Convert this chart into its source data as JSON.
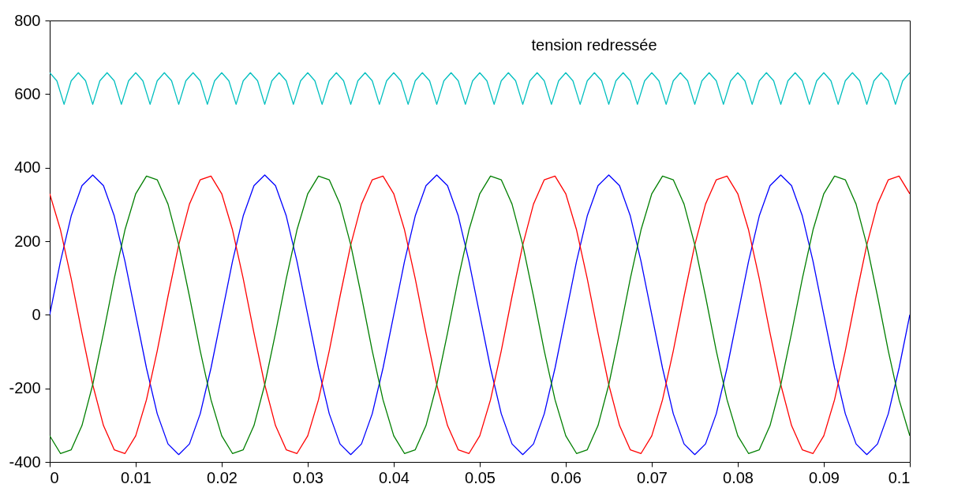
{
  "chart_data": {
    "type": "line",
    "xlim": [
      0,
      0.1
    ],
    "ylim": [
      -400,
      800
    ],
    "xticks": [
      0,
      0.01,
      0.02,
      0.03,
      0.04,
      0.05,
      0.06,
      0.07,
      0.08,
      0.09,
      0.1
    ],
    "yticks": [
      -400,
      -200,
      0,
      200,
      400,
      600,
      800
    ],
    "grid": false,
    "marker": "none",
    "line_style": "solid",
    "annotations": [
      "tension redressée"
    ],
    "x": [
      0,
      0.00125,
      0.0025,
      0.00375,
      0.005,
      0.00625,
      0.0075,
      0.00875,
      0.01,
      0.01125,
      0.0125,
      0.01375,
      0.015,
      0.01625,
      0.0175,
      0.01875,
      0.02,
      0.02125,
      0.0225,
      0.02375,
      0.025,
      0.02625,
      0.0275,
      0.02875,
      0.03,
      0.03125,
      0.0325,
      0.03375,
      0.035,
      0.03625,
      0.0375,
      0.03875,
      0.04,
      0.04125,
      0.0425,
      0.04375,
      0.045,
      0.04625,
      0.0475,
      0.04875,
      0.05,
      0.05125,
      0.0525,
      0.05375,
      0.055,
      0.05625,
      0.0575,
      0.05875,
      0.06,
      0.06125,
      0.0625,
      0.06375,
      0.065,
      0.06625,
      0.0675,
      0.06875,
      0.07,
      0.07125,
      0.0725,
      0.07375,
      0.075,
      0.07625,
      0.0775,
      0.07875,
      0.08,
      0.08125,
      0.0825,
      0.08375,
      0.085,
      0.08625,
      0.0875,
      0.08875,
      0.09,
      0.09125,
      0.0925,
      0.09375,
      0.095,
      0.09625,
      0.0975,
      0.09875,
      0.1
    ],
    "series": [
      {
        "color": "#0000ff",
        "values": [
          0,
          145,
          269,
          351,
          380,
          351,
          269,
          145,
          0,
          -145,
          -269,
          -351,
          -380,
          -351,
          -269,
          -145,
          0,
          145,
          269,
          351,
          380,
          351,
          269,
          145,
          0,
          -145,
          -269,
          -351,
          -380,
          -351,
          -269,
          -145,
          0,
          145,
          269,
          351,
          380,
          351,
          269,
          145,
          0,
          -145,
          -269,
          -351,
          -380,
          -351,
          -269,
          -145,
          0,
          145,
          269,
          351,
          380,
          351,
          269,
          145,
          0,
          -145,
          -269,
          -351,
          -380,
          -351,
          -269,
          -145,
          0,
          145,
          269,
          351,
          380,
          351,
          269,
          145,
          0,
          -145,
          -269,
          -351,
          -380,
          -351,
          -269,
          -145,
          0
        ]
      },
      {
        "color": "#ff0000",
        "values": [
          329,
          231,
          98,
          -50,
          -190,
          -301,
          -367,
          -377,
          -329,
          -231,
          -98,
          50,
          190,
          301,
          367,
          377,
          329,
          231,
          98,
          -50,
          -190,
          -301,
          -367,
          -377,
          -329,
          -231,
          -98,
          50,
          190,
          301,
          367,
          377,
          329,
          231,
          98,
          -50,
          -190,
          -301,
          -367,
          -377,
          -329,
          -231,
          -98,
          50,
          190,
          301,
          367,
          377,
          329,
          231,
          98,
          -50,
          -190,
          -301,
          -367,
          -377,
          -329,
          -231,
          -98,
          50,
          190,
          301,
          367,
          377,
          329,
          231,
          98,
          -50,
          -190,
          -301,
          -367,
          -377,
          -329,
          -231,
          -98,
          50,
          190,
          301,
          367,
          377,
          329
        ]
      },
      {
        "color": "#007f00",
        "values": [
          -329,
          -377,
          -367,
          -301,
          -190,
          -50,
          98,
          231,
          329,
          377,
          367,
          301,
          190,
          50,
          -98,
          -231,
          -329,
          -377,
          -367,
          -301,
          -190,
          -50,
          98,
          231,
          329,
          377,
          367,
          301,
          190,
          50,
          -98,
          -231,
          -329,
          -377,
          -367,
          -301,
          -190,
          -50,
          98,
          231,
          329,
          377,
          367,
          301,
          190,
          50,
          -98,
          -231,
          -329,
          -377,
          -367,
          -301,
          -190,
          -50,
          98,
          231,
          329,
          377,
          367,
          301,
          190,
          50,
          -98,
          -231,
          -329,
          -377,
          -367,
          -301,
          -190,
          -50,
          98,
          231,
          329,
          377,
          367,
          301,
          190,
          50,
          -98,
          -231,
          -329
        ]
      },
      {
        "color": "#00bfbf",
        "x": [
          0,
          0.00083,
          0.00167,
          0.0025,
          0.00333,
          0.00417,
          0.005,
          0.00583,
          0.00667,
          0.0075,
          0.00833,
          0.00917,
          0.01,
          0.01083,
          0.01167,
          0.0125,
          0.01333,
          0.01417,
          0.015,
          0.01583,
          0.01667,
          0.0175,
          0.01833,
          0.01917,
          0.02,
          0.02083,
          0.02167,
          0.0225,
          0.02333,
          0.02417,
          0.025,
          0.02583,
          0.02667,
          0.0275,
          0.02833,
          0.02917,
          0.03,
          0.03083,
          0.03167,
          0.0325,
          0.03333,
          0.03417,
          0.035,
          0.03583,
          0.03667,
          0.0375,
          0.03833,
          0.03917,
          0.04,
          0.04083,
          0.04167,
          0.0425,
          0.04333,
          0.04417,
          0.045,
          0.04583,
          0.04667,
          0.0475,
          0.04833,
          0.04917,
          0.05,
          0.05083,
          0.05167,
          0.0525,
          0.05333,
          0.05417,
          0.055,
          0.05583,
          0.05667,
          0.0575,
          0.05833,
          0.05917,
          0.06,
          0.06083,
          0.06167,
          0.0625,
          0.06333,
          0.06417,
          0.065,
          0.06583,
          0.06667,
          0.0675,
          0.06833,
          0.06917,
          0.07,
          0.07083,
          0.07167,
          0.0725,
          0.07333,
          0.07417,
          0.075,
          0.07583,
          0.07667,
          0.0775,
          0.07833,
          0.07917,
          0.08,
          0.08083,
          0.08167,
          0.0825,
          0.08333,
          0.08417,
          0.085,
          0.08583,
          0.08667,
          0.0875,
          0.08833,
          0.08917,
          0.09,
          0.09083,
          0.09167,
          0.0925,
          0.09333,
          0.09417,
          0.095,
          0.09583,
          0.09667,
          0.0975,
          0.09833,
          0.09917,
          0.1
        ],
        "values": [
          658,
          636,
          572,
          636,
          658,
          636,
          572,
          636,
          658,
          636,
          572,
          636,
          658,
          636,
          572,
          636,
          658,
          636,
          572,
          636,
          658,
          636,
          572,
          636,
          658,
          636,
          572,
          636,
          658,
          636,
          572,
          636,
          658,
          636,
          572,
          636,
          658,
          636,
          572,
          636,
          658,
          636,
          572,
          636,
          658,
          636,
          572,
          636,
          658,
          636,
          572,
          636,
          658,
          636,
          572,
          636,
          658,
          636,
          572,
          636,
          658,
          636,
          572,
          636,
          658,
          636,
          572,
          636,
          658,
          636,
          572,
          636,
          658,
          636,
          572,
          636,
          658,
          636,
          572,
          636,
          658,
          636,
          572,
          636,
          658,
          636,
          572,
          636,
          658,
          636,
          572,
          636,
          658,
          636,
          572,
          636,
          658,
          636,
          572,
          636,
          658,
          636,
          572,
          636,
          658,
          636,
          572,
          636,
          658,
          636,
          572,
          636,
          658,
          636,
          572,
          636,
          658,
          636,
          572,
          636,
          658
        ]
      }
    ]
  }
}
